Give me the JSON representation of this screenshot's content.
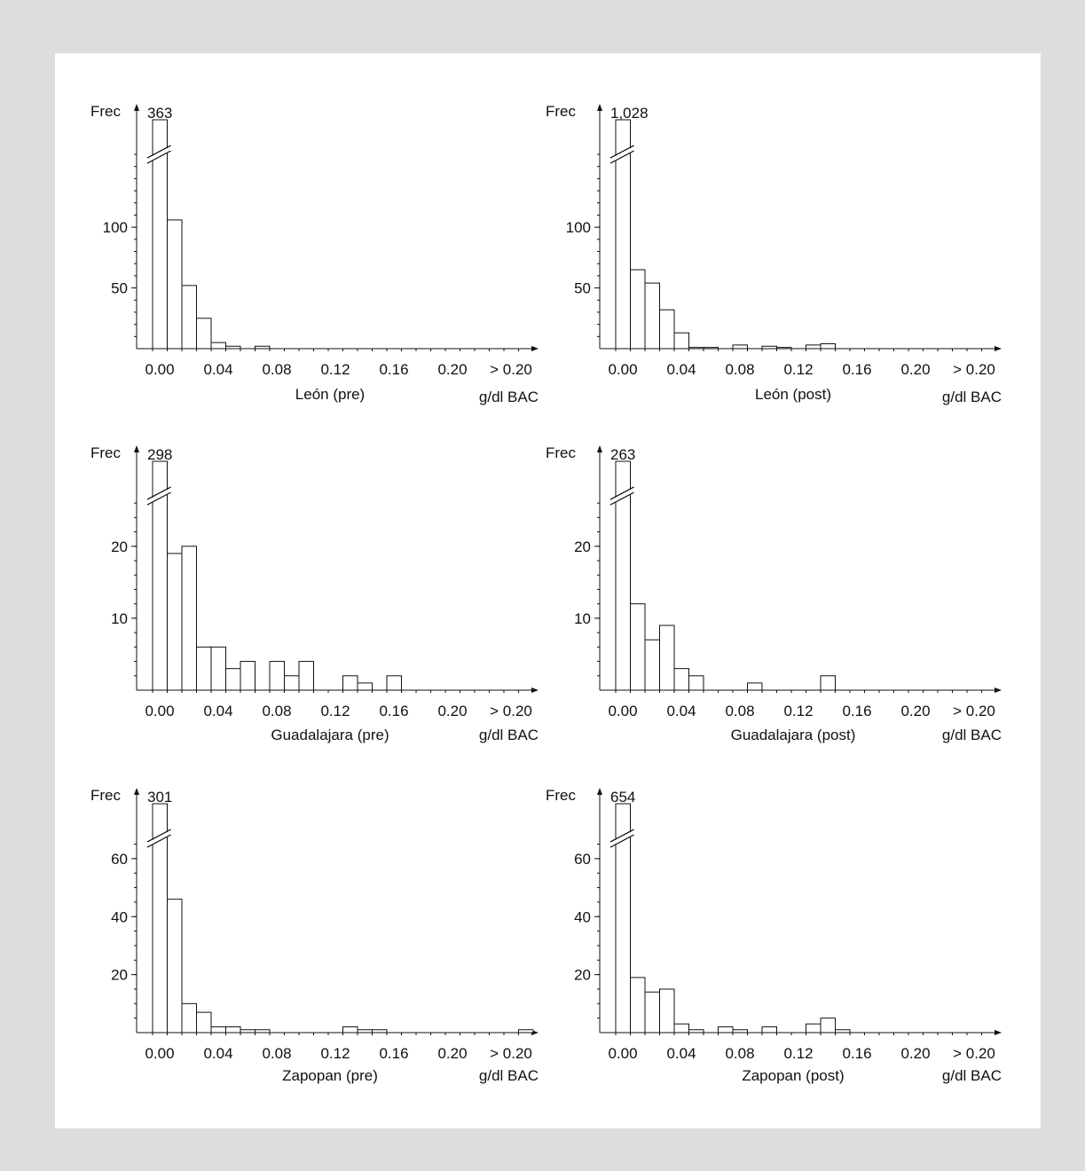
{
  "colors": {
    "background": "#dcdddf",
    "panel": "#ffffff",
    "ink": "#111111"
  },
  "chart_data": [
    {
      "type": "bar",
      "title": "León (pre)",
      "ylabel": "Frec",
      "xlabel": "g/dl BAC",
      "top_value_label": "363",
      "ylim": [
        0,
        160
      ],
      "yticks": [
        50,
        100
      ],
      "axis_break": true,
      "bin_width": 0.01,
      "xtick_labels": [
        "0.00",
        "0.04",
        "0.08",
        "0.12",
        "0.16",
        "0.20",
        "> 0.20"
      ],
      "values": [
        363,
        106,
        52,
        25,
        5,
        2,
        0,
        2,
        0,
        0,
        0,
        0,
        0,
        0,
        0,
        0,
        0,
        0,
        0,
        0,
        0,
        0,
        0,
        0,
        0,
        0
      ]
    },
    {
      "type": "bar",
      "title": "León (post)",
      "ylabel": "Frec",
      "xlabel": "g/dl BAC",
      "top_value_label": "1,028",
      "ylim": [
        0,
        160
      ],
      "yticks": [
        50,
        100
      ],
      "axis_break": true,
      "bin_width": 0.01,
      "xtick_labels": [
        "0.00",
        "0.04",
        "0.08",
        "0.12",
        "0.16",
        "0.20",
        "> 0.20"
      ],
      "values": [
        1028,
        65,
        54,
        32,
        13,
        1,
        1,
        0,
        3,
        0,
        2,
        1,
        0,
        3,
        4,
        0,
        0,
        0,
        0,
        0,
        0,
        0,
        0,
        0,
        0,
        0
      ]
    },
    {
      "type": "bar",
      "title": "Guadalajara (pre)",
      "ylabel": "Frec",
      "xlabel": "g/dl BAC",
      "top_value_label": "298",
      "ylim": [
        0,
        27
      ],
      "yticks": [
        10,
        20
      ],
      "axis_break": true,
      "bin_width": 0.01,
      "xtick_labels": [
        "0.00",
        "0.04",
        "0.08",
        "0.12",
        "0.16",
        "0.20",
        "> 0.20"
      ],
      "values": [
        298,
        19,
        20,
        6,
        6,
        3,
        4,
        0,
        4,
        2,
        4,
        0,
        0,
        2,
        1,
        0,
        2,
        0,
        0,
        0,
        0,
        0,
        0,
        0,
        0,
        0
      ]
    },
    {
      "type": "bar",
      "title": "Guadalajara (post)",
      "ylabel": "Frec",
      "xlabel": "g/dl BAC",
      "top_value_label": "263",
      "ylim": [
        0,
        27
      ],
      "yticks": [
        10,
        20
      ],
      "axis_break": true,
      "bin_width": 0.01,
      "xtick_labels": [
        "0.00",
        "0.04",
        "0.08",
        "0.12",
        "0.16",
        "0.20",
        "> 0.20"
      ],
      "values": [
        263,
        12,
        7,
        9,
        3,
        2,
        0,
        0,
        0,
        1,
        0,
        0,
        0,
        0,
        2,
        0,
        0,
        0,
        0,
        0,
        0,
        0,
        0,
        0,
        0,
        0
      ]
    },
    {
      "type": "bar",
      "title": "Zapopan (pre)",
      "ylabel": "Frec",
      "xlabel": "g/dl BAC",
      "top_value_label": "301",
      "ylim": [
        0,
        67
      ],
      "yticks": [
        20,
        40,
        60
      ],
      "axis_break": true,
      "bin_width": 0.01,
      "xtick_labels": [
        "0.00",
        "0.04",
        "0.08",
        "0.12",
        "0.16",
        "0.20",
        "> 0.20"
      ],
      "values": [
        301,
        46,
        10,
        7,
        2,
        2,
        1,
        1,
        0,
        0,
        0,
        0,
        0,
        2,
        1,
        1,
        0,
        0,
        0,
        0,
        0,
        0,
        0,
        0,
        0,
        1
      ]
    },
    {
      "type": "bar",
      "title": "Zapopan (post)",
      "ylabel": "Frec",
      "xlabel": "g/dl BAC",
      "top_value_label": "654",
      "ylim": [
        0,
        67
      ],
      "yticks": [
        20,
        40,
        60
      ],
      "axis_break": true,
      "bin_width": 0.01,
      "xtick_labels": [
        "0.00",
        "0.04",
        "0.08",
        "0.12",
        "0.16",
        "0.20",
        "> 0.20"
      ],
      "values": [
        654,
        19,
        14,
        15,
        3,
        1,
        0,
        2,
        1,
        0,
        2,
        0,
        0,
        3,
        5,
        1,
        0,
        0,
        0,
        0,
        0,
        0,
        0,
        0,
        0,
        0
      ]
    }
  ]
}
